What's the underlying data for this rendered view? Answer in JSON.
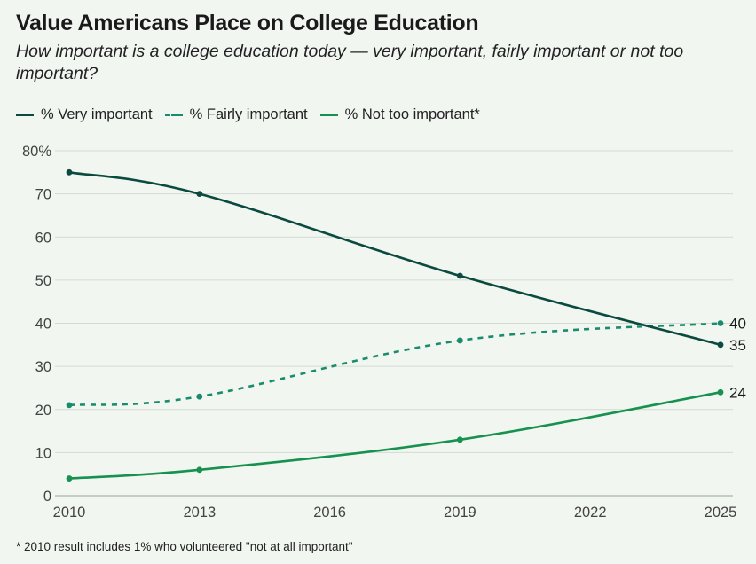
{
  "header": {
    "title": "Value Americans Place on College Education",
    "subtitle": "How important is a college education today — very important, fairly important or not too important?"
  },
  "legend": [
    {
      "label": "% Very important",
      "color": "#0b4a3e",
      "style": "solid"
    },
    {
      "label": "% Fairly important",
      "color": "#1a8c6e",
      "style": "dashed"
    },
    {
      "label": "% Not too important*",
      "color": "#17914f",
      "style": "solid"
    }
  ],
  "footnote": "* 2010 result includes 1% who volunteered \"not at all important\"",
  "chart_data": {
    "type": "line",
    "title": "Value Americans Place on College Education",
    "x_ticks": [
      2010,
      2013,
      2016,
      2019,
      2022,
      2025
    ],
    "y_ticks": [
      {
        "value": 0,
        "label": "0"
      },
      {
        "value": 10,
        "label": "10"
      },
      {
        "value": 20,
        "label": "20"
      },
      {
        "value": 30,
        "label": "30"
      },
      {
        "value": 40,
        "label": "40"
      },
      {
        "value": 50,
        "label": "50"
      },
      {
        "value": 60,
        "label": "60"
      },
      {
        "value": 70,
        "label": "70"
      },
      {
        "value": 80,
        "label": "80%"
      }
    ],
    "xlim": [
      2010,
      2025
    ],
    "ylim": [
      0,
      80
    ],
    "grid": true,
    "legend_position": "top-left",
    "series": [
      {
        "name": "% Very important",
        "color": "#0b4a3e",
        "dashed": false,
        "x": [
          2010,
          2013,
          2019,
          2025
        ],
        "values": [
          75,
          70,
          51,
          35
        ],
        "end_label": "35"
      },
      {
        "name": "% Fairly important",
        "color": "#1a8c6e",
        "dashed": true,
        "x": [
          2010,
          2013,
          2019,
          2025
        ],
        "values": [
          21,
          23,
          36,
          40
        ],
        "end_label": "40"
      },
      {
        "name": "% Not too important*",
        "color": "#17914f",
        "dashed": false,
        "x": [
          2010,
          2013,
          2019,
          2025
        ],
        "values": [
          4,
          6,
          13,
          24
        ],
        "end_label": "24"
      }
    ]
  }
}
